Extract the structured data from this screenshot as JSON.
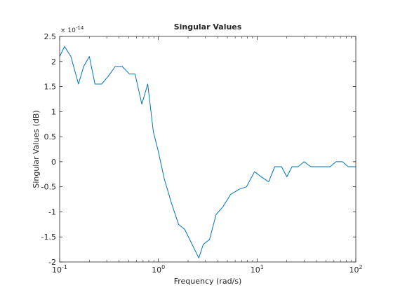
{
  "chart_data": {
    "type": "line",
    "title": "Singular Values",
    "xlabel": "Frequency (rad/s)",
    "ylabel": "Singular Values (dB)",
    "x_scale": "log",
    "xlim": [
      0.1,
      100
    ],
    "ylim": [
      -2.0,
      2.5
    ],
    "y_multiplier": "× 10",
    "y_exponent": "-14",
    "x_ticks": [
      {
        "value": 0.1,
        "base": "10",
        "exp": "-1"
      },
      {
        "value": 1,
        "base": "10",
        "exp": "0"
      },
      {
        "value": 10,
        "base": "10",
        "exp": "1"
      },
      {
        "value": 100,
        "base": "10",
        "exp": "2"
      }
    ],
    "y_ticks": [
      {
        "value": 2.5,
        "label": "2.5"
      },
      {
        "value": 2.0,
        "label": "2"
      },
      {
        "value": 1.5,
        "label": "1.5"
      },
      {
        "value": 1.0,
        "label": "1"
      },
      {
        "value": 0.5,
        "label": "0.5"
      },
      {
        "value": 0.0,
        "label": "0"
      },
      {
        "value": -0.5,
        "label": "-0.5"
      },
      {
        "value": -1.0,
        "label": "-1"
      },
      {
        "value": -1.5,
        "label": "-1.5"
      },
      {
        "value": -2.0,
        "label": "-2"
      }
    ],
    "grid": false,
    "series": [
      {
        "color": "#0072bd",
        "x": [
          0.1,
          0.112,
          0.13,
          0.155,
          0.175,
          0.2,
          0.228,
          0.266,
          0.31,
          0.365,
          0.43,
          0.51,
          0.58,
          0.68,
          0.78,
          0.89,
          1.0,
          1.15,
          1.37,
          1.6,
          1.85,
          2.2,
          2.57,
          2.85,
          3.3,
          3.85,
          4.5,
          5.4,
          6.6,
          7.8,
          9.4,
          11.0,
          13.1,
          15.1,
          17.7,
          20.0,
          22.6,
          26.0,
          30.0,
          35.0,
          40.5,
          47.5,
          55.0,
          63.0,
          73.0,
          84.0,
          100.0
        ],
        "y": [
          2.1,
          2.3,
          2.1,
          1.55,
          1.9,
          2.1,
          1.55,
          1.55,
          1.7,
          1.9,
          1.9,
          1.75,
          1.75,
          1.15,
          1.55,
          0.6,
          0.2,
          -0.35,
          -0.85,
          -1.25,
          -1.35,
          -1.65,
          -1.92,
          -1.65,
          -1.55,
          -1.05,
          -0.9,
          -0.65,
          -0.55,
          -0.5,
          -0.2,
          -0.3,
          -0.4,
          -0.1,
          -0.1,
          -0.3,
          -0.1,
          -0.1,
          0.0,
          -0.1,
          -0.1,
          -0.1,
          -0.1,
          0.0,
          0.0,
          -0.1,
          -0.1
        ]
      }
    ]
  }
}
